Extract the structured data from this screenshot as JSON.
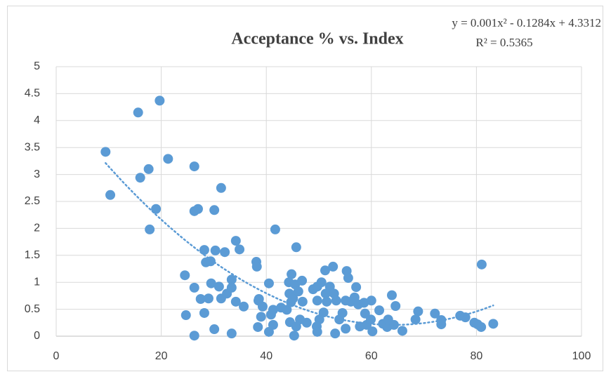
{
  "chart_data": {
    "type": "scatter",
    "title": "Acceptance % vs. Index",
    "trendline": {
      "equation": "y = 0.001x² - 0.1284x + 4.3312",
      "r_squared": "R² = 0.5365",
      "coefficients": [
        0.001,
        -0.1284,
        4.3312
      ],
      "color": "#5b9bd5"
    },
    "color": "#5b9bd5",
    "x": [
      9.4,
      10.3,
      15.6,
      19.7,
      16.0,
      17.6,
      21.3,
      19.0,
      17.8,
      26.3,
      31.4,
      27.0,
      26.3,
      30.1,
      24.5,
      24.7,
      26.3,
      26.3,
      28.2,
      28.5,
      29.4,
      30.3,
      32.1,
      34.2,
      34.9,
      41.7,
      38.1,
      38.2,
      27.5,
      28.2,
      29.0,
      29.5,
      31.0,
      31.4,
      32.5,
      33.4,
      33.4,
      34.2,
      35.7,
      30.1,
      33.4,
      38.5,
      38.6,
      39.3,
      39.0,
      38.4,
      40.5,
      40.9,
      40.5,
      41.3,
      41.3,
      42.8,
      43.9,
      44.3,
      44.8,
      44.4,
      44.7,
      45.1,
      44.5,
      45.3,
      45.7,
      45.5,
      46.1,
      46.8,
      46.9,
      46.4,
      45.7,
      47.7,
      48.9,
      49.7,
      50.5,
      49.7,
      50.1,
      49.6,
      49.7,
      51.2,
      52.7,
      51.3,
      52.1,
      52.9,
      53.3,
      51.5,
      50.9,
      53.1,
      53.9,
      54.5,
      55.1,
      55.3,
      55.6,
      55.1,
      56.1,
      57.1,
      56.8,
      57.5,
      57.8,
      58.6,
      58.8,
      59.1,
      60.0,
      59.9,
      60.2,
      61.5,
      62.2,
      63.0,
      63.2,
      63.9,
      64.6,
      64.3,
      65.9,
      68.9,
      68.4,
      72.1,
      73.3,
      73.3,
      76.9,
      77.9,
      79.6,
      80.2,
      80.9,
      81.0,
      83.2
    ],
    "values": [
      3.42,
      2.62,
      4.15,
      4.37,
      2.94,
      3.1,
      3.29,
      2.36,
      1.98,
      3.15,
      2.75,
      2.36,
      2.32,
      2.34,
      1.13,
      0.39,
      0.01,
      0.9,
      1.6,
      1.37,
      1.39,
      1.59,
      1.56,
      1.77,
      1.61,
      1.98,
      1.38,
      1.29,
      0.69,
      0.43,
      0.7,
      0.98,
      0.92,
      0.7,
      0.79,
      1.05,
      0.9,
      0.64,
      0.55,
      0.13,
      0.05,
      0.66,
      0.69,
      0.55,
      0.36,
      0.17,
      0.98,
      0.4,
      0.08,
      0.21,
      0.49,
      0.53,
      0.49,
      1.0,
      1.15,
      0.79,
      0.63,
      0.7,
      0.26,
      0.01,
      1.65,
      0.96,
      0.83,
      1.03,
      0.64,
      0.31,
      0.18,
      0.25,
      0.87,
      0.92,
      1.0,
      0.66,
      0.31,
      0.18,
      0.08,
      1.22,
      1.29,
      0.79,
      0.92,
      0.79,
      0.66,
      0.64,
      0.44,
      0.05,
      0.31,
      0.43,
      0.14,
      1.21,
      1.08,
      0.66,
      0.64,
      0.91,
      0.72,
      0.59,
      0.18,
      0.62,
      0.42,
      0.21,
      0.66,
      0.31,
      0.09,
      0.48,
      0.23,
      0.17,
      0.31,
      0.76,
      0.56,
      0.21,
      0.1,
      0.46,
      0.31,
      0.42,
      0.22,
      0.3,
      0.38,
      0.35,
      0.25,
      0.22,
      0.17,
      1.33,
      0.23
    ],
    "xlim": [
      0,
      100
    ],
    "xticks": [
      0,
      20,
      40,
      60,
      80,
      100
    ],
    "ylim": [
      0,
      5
    ],
    "yticks": [
      0,
      0.5,
      1,
      1.5,
      2,
      2.5,
      3,
      3.5,
      4,
      4.5,
      5
    ],
    "grid": true
  }
}
